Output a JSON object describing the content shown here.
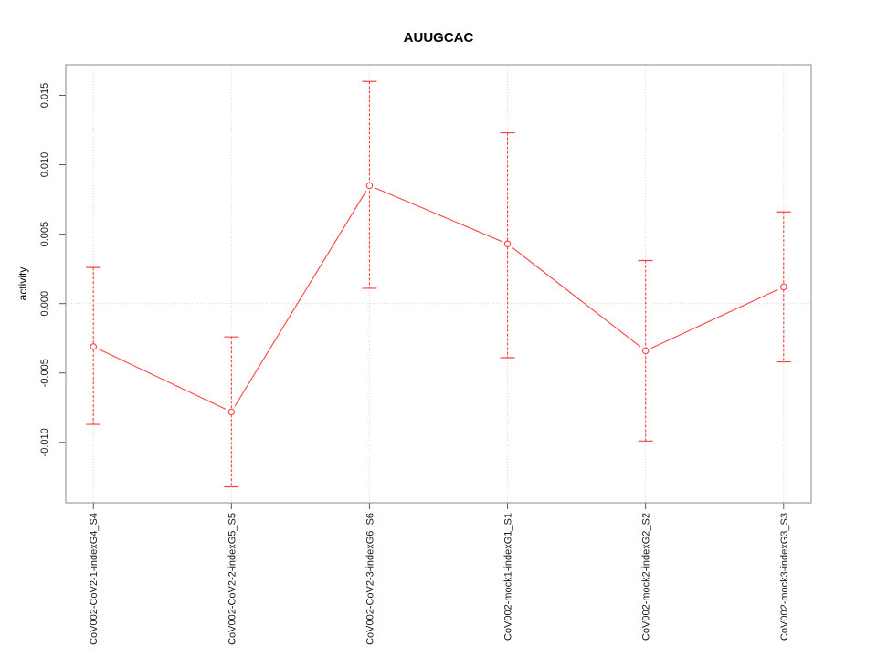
{
  "figure": {
    "background": "#ffffff"
  },
  "chart_data": {
    "type": "line",
    "title": "AUUGCAC",
    "xlabel": "",
    "ylabel": "activity",
    "categories": [
      "CoV002-CoV2-1-indexG4_S4",
      "CoV002-CoV2-2-indexG5_S5",
      "CoV002-CoV2-3-indexG6_S6",
      "CoV002-mock1-indexG1_S1",
      "CoV002-mock2-indexG2_S2",
      "CoV002-mock3-indexG3_S3"
    ],
    "series": [
      {
        "name": "activity",
        "values": [
          -0.0031,
          -0.0078,
          0.0085,
          0.0043,
          -0.0034,
          0.0012
        ],
        "error_high": [
          0.0026,
          -0.0024,
          0.016,
          0.0123,
          0.0031,
          0.0066
        ],
        "error_low": [
          -0.0087,
          -0.0132,
          0.0011,
          -0.0039,
          -0.0099,
          -0.0042
        ]
      }
    ],
    "xlim": [
      0.8,
      6.2
    ],
    "ylim": [
      -0.01435,
      0.0172
    ],
    "yticks": [
      -0.01,
      -0.005,
      0.0,
      0.005,
      0.01,
      0.015
    ],
    "ytick_labels": [
      "-0.010",
      "-0.005",
      "0.000",
      "0.005",
      "0.010",
      "0.015"
    ],
    "grid": {
      "vertical_at_categories": true,
      "horizontal_at_zero": true,
      "style": "dotted"
    },
    "marker": "open-circle",
    "error_bar_style": "dashed-with-caps",
    "legend": "none",
    "colors": {
      "series": "#ff4040",
      "grid": "#d9d9d9",
      "axis_box": "#8a8a8a",
      "tick": "#555555",
      "text": "#1a1a1a"
    }
  }
}
